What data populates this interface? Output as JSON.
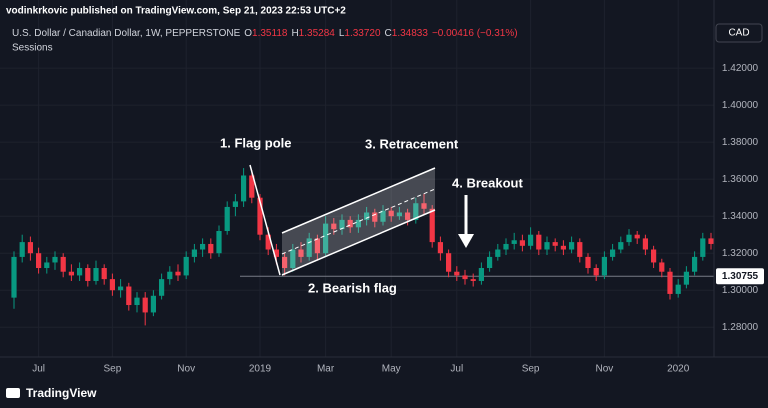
{
  "header": {
    "published": "vodinkrkovic published on TradingView.com, Sep 21, 2023 22:53 UTC+2",
    "symbol": "U.S. Dollar / Canadian Dollar, 1W, PEPPERSTONE",
    "legend": [
      {
        "label": "O",
        "value": "1.35118"
      },
      {
        "label": "H",
        "value": "1.35284"
      },
      {
        "label": "L",
        "value": "1.33720"
      },
      {
        "label": "C",
        "value": "1.34833"
      }
    ],
    "change": "−0.00416 (−0.31%)",
    "indicator": "Sessions",
    "currency": "CAD"
  },
  "footer": {
    "brand": "TradingView"
  },
  "chart_data": {
    "type": "candlestick",
    "up_color": "#089981",
    "down_color": "#f23645",
    "grid": true,
    "categories": [
      null,
      null,
      null,
      "Jul",
      null,
      null,
      null,
      null,
      null,
      null,
      null,
      null,
      "Sep",
      null,
      null,
      null,
      null,
      null,
      null,
      null,
      null,
      "Nov",
      null,
      null,
      null,
      null,
      null,
      null,
      null,
      null,
      "2019",
      null,
      null,
      null,
      null,
      null,
      null,
      null,
      "Mar",
      null,
      null,
      null,
      null,
      null,
      null,
      null,
      "May",
      null,
      null,
      null,
      null,
      null,
      null,
      null,
      "Jul",
      null,
      null,
      null,
      null,
      null,
      null,
      null,
      null,
      "Sep",
      null,
      null,
      null,
      null,
      null,
      null,
      null,
      null,
      "Nov",
      null,
      null,
      null,
      null,
      null,
      null,
      null,
      null,
      "2020",
      null,
      null,
      null,
      null
    ],
    "open": [
      1.296,
      1.318,
      1.326,
      1.32,
      1.312,
      1.315,
      1.318,
      1.31,
      1.308,
      1.312,
      1.305,
      1.312,
      1.306,
      1.3,
      1.302,
      1.292,
      1.296,
      1.288,
      1.297,
      1.306,
      1.31,
      1.308,
      1.318,
      1.322,
      1.325,
      1.32,
      1.332,
      1.345,
      1.348,
      1.362,
      1.35,
      1.33,
      1.322,
      1.318,
      1.312,
      1.322,
      1.318,
      1.328,
      1.32,
      1.336,
      1.333,
      1.338,
      1.334,
      1.338,
      1.342,
      1.337,
      1.343,
      1.34,
      1.342,
      1.338,
      1.347,
      1.344,
      1.326,
      1.32,
      1.31,
      1.308,
      1.306,
      1.305,
      1.312,
      1.318,
      1.322,
      1.325,
      1.327,
      1.324,
      1.33,
      1.322,
      1.326,
      1.324,
      1.322,
      1.326,
      1.318,
      1.312,
      1.308,
      1.318,
      1.322,
      1.326,
      1.33,
      1.328,
      1.322,
      1.315,
      1.31,
      1.298,
      1.303,
      1.31,
      1.318,
      1.328
    ],
    "high": [
      1.321,
      1.33,
      1.329,
      1.323,
      1.318,
      1.321,
      1.32,
      1.314,
      1.315,
      1.314,
      1.316,
      1.314,
      1.309,
      1.306,
      1.304,
      1.299,
      1.299,
      1.3,
      1.309,
      1.313,
      1.314,
      1.321,
      1.325,
      1.328,
      1.328,
      1.335,
      1.348,
      1.352,
      1.366,
      1.365,
      1.352,
      1.334,
      1.325,
      1.32,
      1.325,
      1.326,
      1.331,
      1.33,
      1.34,
      1.339,
      1.341,
      1.34,
      1.341,
      1.345,
      1.344,
      1.346,
      1.345,
      1.345,
      1.344,
      1.35,
      1.352,
      1.346,
      1.329,
      1.322,
      1.313,
      1.311,
      1.309,
      1.315,
      1.321,
      1.325,
      1.328,
      1.331,
      1.33,
      1.334,
      1.332,
      1.329,
      1.328,
      1.327,
      1.329,
      1.328,
      1.32,
      1.314,
      1.321,
      1.325,
      1.329,
      1.333,
      1.332,
      1.33,
      1.324,
      1.317,
      1.312,
      1.306,
      1.313,
      1.321,
      1.331,
      1.331
    ],
    "low": [
      1.29,
      1.315,
      1.316,
      1.309,
      1.309,
      1.311,
      1.307,
      1.305,
      1.305,
      1.302,
      1.303,
      1.303,
      1.297,
      1.296,
      1.289,
      1.288,
      1.281,
      1.286,
      1.295,
      1.303,
      1.305,
      1.306,
      1.315,
      1.318,
      1.317,
      1.318,
      1.33,
      1.34,
      1.345,
      1.347,
      1.327,
      1.319,
      1.314,
      1.308,
      1.31,
      1.315,
      1.316,
      1.316,
      1.318,
      1.33,
      1.33,
      1.331,
      1.331,
      1.335,
      1.334,
      1.335,
      1.337,
      1.338,
      1.335,
      1.336,
      1.341,
      1.323,
      1.316,
      1.307,
      1.305,
      1.303,
      1.302,
      1.303,
      1.31,
      1.316,
      1.319,
      1.322,
      1.321,
      1.322,
      1.319,
      1.319,
      1.321,
      1.319,
      1.32,
      1.315,
      1.309,
      1.305,
      1.306,
      1.316,
      1.32,
      1.324,
      1.325,
      1.319,
      1.312,
      1.307,
      1.295,
      1.296,
      1.301,
      1.308,
      1.316,
      1.322
    ],
    "close": [
      1.318,
      1.326,
      1.32,
      1.312,
      1.315,
      1.318,
      1.31,
      1.308,
      1.312,
      1.305,
      1.312,
      1.306,
      1.3,
      1.302,
      1.292,
      1.296,
      1.288,
      1.297,
      1.306,
      1.31,
      1.308,
      1.318,
      1.322,
      1.325,
      1.32,
      1.332,
      1.345,
      1.348,
      1.362,
      1.35,
      1.33,
      1.322,
      1.318,
      1.312,
      1.322,
      1.318,
      1.328,
      1.32,
      1.336,
      1.333,
      1.338,
      1.334,
      1.338,
      1.342,
      1.337,
      1.343,
      1.34,
      1.342,
      1.338,
      1.347,
      1.344,
      1.326,
      1.32,
      1.31,
      1.308,
      1.306,
      1.305,
      1.312,
      1.318,
      1.322,
      1.325,
      1.327,
      1.324,
      1.33,
      1.322,
      1.326,
      1.324,
      1.322,
      1.326,
      1.318,
      1.312,
      1.308,
      1.318,
      1.322,
      1.326,
      1.33,
      1.328,
      1.322,
      1.315,
      1.31,
      1.298,
      1.303,
      1.31,
      1.318,
      1.328,
      1.325
    ],
    "ylim": [
      1.265,
      1.4325
    ],
    "yticks": [
      {
        "value": 1.28,
        "label": "1.28000"
      },
      {
        "value": 1.3,
        "label": "1.30000"
      },
      {
        "value": 1.32,
        "label": "1.32000"
      },
      {
        "value": 1.34,
        "label": "1.34000"
      },
      {
        "value": 1.36,
        "label": "1.36000"
      },
      {
        "value": 1.38,
        "label": "1.38000"
      },
      {
        "value": 1.4,
        "label": "1.40000"
      },
      {
        "value": 1.42,
        "label": "1.42000"
      }
    ],
    "last_price": 1.30755,
    "annotations": [
      "1. Flag pole",
      "2. Bearish flag",
      "3. Retracement",
      "4. Breakout"
    ]
  }
}
